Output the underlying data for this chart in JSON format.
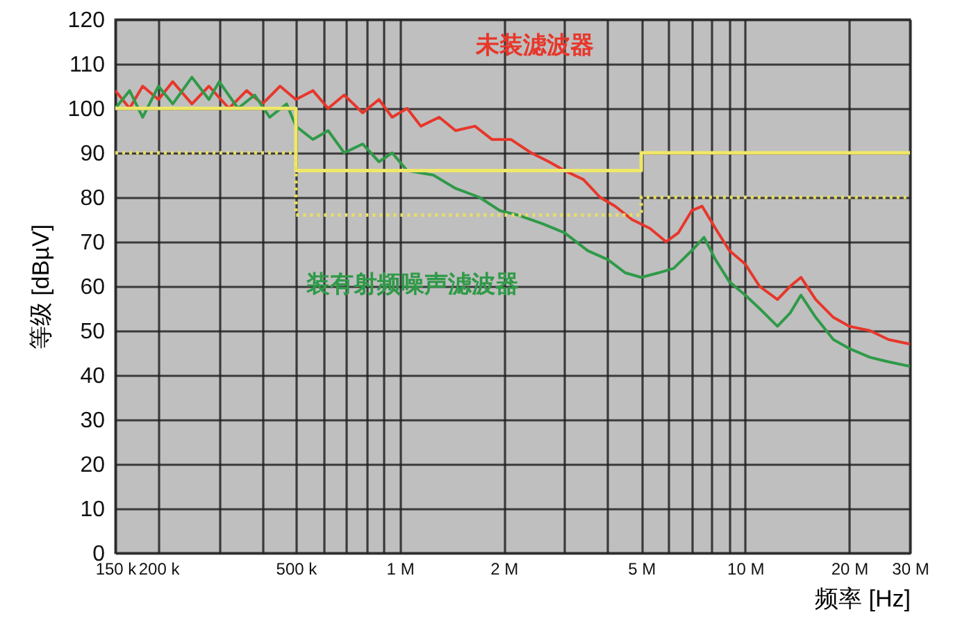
{
  "chart_data": {
    "type": "line",
    "xlabel": "频率 [Hz]",
    "ylabel": "等级 [dBµV]",
    "log": "x",
    "grid": true,
    "xlim": [
      150000,
      30000000
    ],
    "ylim": [
      0,
      120
    ],
    "xticks": [
      {
        "value": 150000,
        "label": "150 k"
      },
      {
        "value": 200000,
        "label": "200 k"
      },
      {
        "value": 300000,
        "label": null
      },
      {
        "value": 400000,
        "label": null
      },
      {
        "value": 500000,
        "label": "500 k"
      },
      {
        "value": 600000,
        "label": null
      },
      {
        "value": 700000,
        "label": null
      },
      {
        "value": 800000,
        "label": null
      },
      {
        "value": 900000,
        "label": null
      },
      {
        "value": 1000000,
        "label": "1 M"
      },
      {
        "value": 2000000,
        "label": "2 M"
      },
      {
        "value": 3000000,
        "label": null
      },
      {
        "value": 4000000,
        "label": null
      },
      {
        "value": 5000000,
        "label": "5 M"
      },
      {
        "value": 6000000,
        "label": null
      },
      {
        "value": 7000000,
        "label": null
      },
      {
        "value": 8000000,
        "label": null
      },
      {
        "value": 9000000,
        "label": null
      },
      {
        "value": 10000000,
        "label": "10 M"
      },
      {
        "value": 20000000,
        "label": "20 M"
      },
      {
        "value": 30000000,
        "label": "30 M"
      }
    ],
    "yticks": [
      0,
      10,
      20,
      30,
      40,
      50,
      60,
      70,
      80,
      90,
      100,
      110,
      120
    ],
    "series": [
      {
        "name": "未装滤波器",
        "color": "#e8362a",
        "x": [
          150000,
          165000,
          180000,
          200000,
          220000,
          250000,
          280000,
          320000,
          360000,
          400000,
          450000,
          500000,
          560000,
          620000,
          690000,
          780000,
          870000,
          950000,
          1050000,
          1150000,
          1300000,
          1450000,
          1650000,
          1850000,
          2100000,
          2400000,
          2700000,
          3000000,
          3400000,
          3800000,
          4200000,
          4700000,
          5300000,
          5900000,
          6400000,
          7000000,
          7500000,
          8200000,
          9000000,
          10000000,
          11000000,
          12400000,
          13500000,
          14500000,
          16000000,
          18000000,
          20000000,
          23000000,
          26000000,
          30000000
        ],
        "values": [
          104,
          100,
          105,
          102,
          106,
          101,
          105,
          100,
          104,
          101,
          105,
          102,
          104,
          100,
          103,
          99,
          102,
          98,
          100,
          96,
          98,
          95,
          96,
          93,
          93,
          90,
          88,
          86,
          84,
          80,
          78,
          75,
          73,
          70,
          72,
          77,
          78,
          73,
          68,
          65,
          60,
          57,
          60,
          62,
          57,
          53,
          51,
          50,
          48,
          47
        ]
      },
      {
        "name": "装有射频噪声滤波器",
        "color": "#2f9a48",
        "x": [
          150000,
          165000,
          180000,
          200000,
          220000,
          250000,
          280000,
          300000,
          340000,
          380000,
          420000,
          470000,
          500000,
          560000,
          620000,
          690000,
          780000,
          870000,
          950000,
          1050000,
          1250000,
          1450000,
          1700000,
          1950000,
          2200000,
          2600000,
          3000000,
          3500000,
          4000000,
          4500000,
          5000000,
          5600000,
          6200000,
          7000000,
          7600000,
          8200000,
          9000000,
          10000000,
          11000000,
          12400000,
          13500000,
          14500000,
          16000000,
          18000000,
          20000000,
          23000000,
          26000000,
          30000000
        ],
        "values": [
          100,
          104,
          98,
          105,
          101,
          107,
          102,
          106,
          100,
          103,
          98,
          101,
          96,
          93,
          95,
          90,
          92,
          88,
          90,
          86,
          85,
          82,
          80,
          77,
          76,
          74,
          72,
          68,
          66,
          63,
          62,
          63,
          64,
          68,
          71,
          66,
          61,
          58,
          55,
          51,
          54,
          58,
          53,
          48,
          46,
          44,
          43,
          42
        ]
      },
      {
        "type": "step",
        "color": "#f0e868",
        "line_style": "solid",
        "x": [
          150000,
          500000,
          5000000,
          30000000
        ],
        "values": [
          100,
          86,
          90,
          90
        ]
      },
      {
        "type": "step",
        "color": "#e8de60",
        "line_style": "dotted",
        "x": [
          150000,
          500000,
          5000000,
          30000000
        ],
        "values": [
          90,
          76,
          80,
          80
        ]
      }
    ]
  }
}
